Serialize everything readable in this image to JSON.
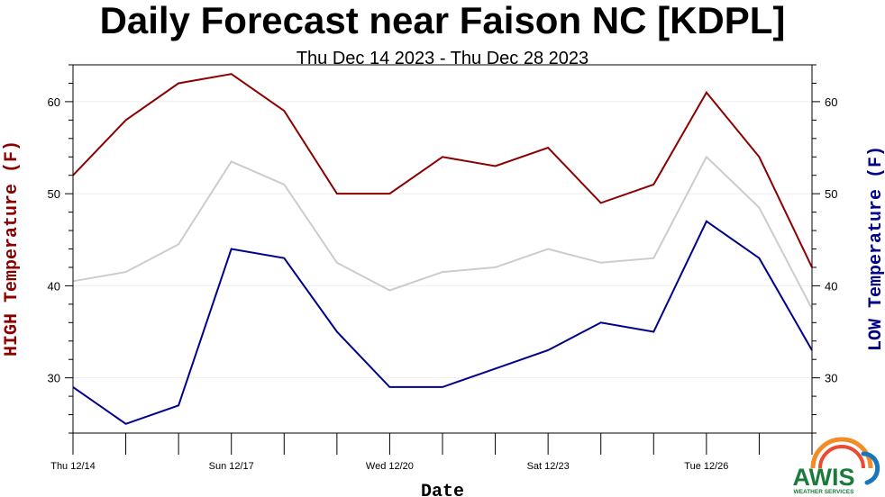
{
  "chart_data": {
    "type": "line",
    "title": "Daily Forecast near Faison NC [KDPL]",
    "subtitle": "Thu Dec 14 2023 - Thu Dec 28 2023",
    "xlabel": "Date",
    "ylabel_left": "HIGH Temperature (F)",
    "ylabel_right": "LOW Temperature (F)",
    "ylim": [
      24,
      64
    ],
    "yticks": [
      30,
      40,
      50,
      60
    ],
    "x": [
      "12/14",
      "12/15",
      "12/16",
      "12/17",
      "12/18",
      "12/19",
      "12/20",
      "12/21",
      "12/22",
      "12/23",
      "12/24",
      "12/25",
      "12/26",
      "12/27",
      "12/28"
    ],
    "xtick_labels": [
      {
        "index": 0,
        "label": "Thu 12/14"
      },
      {
        "index": 3,
        "label": "Sun 12/17"
      },
      {
        "index": 6,
        "label": "Wed 12/20"
      },
      {
        "index": 9,
        "label": "Sat 12/23"
      },
      {
        "index": 12,
        "label": "Tue 12/26"
      }
    ],
    "series": [
      {
        "key": "high",
        "color": "#8b0000",
        "values": [
          52,
          58,
          62,
          63,
          59,
          50,
          50,
          54,
          53,
          55,
          49,
          51,
          61,
          54,
          42
        ]
      },
      {
        "key": "mean",
        "color": "#cccccc",
        "values": [
          40.5,
          41.5,
          44.5,
          53.5,
          51,
          42.5,
          39.5,
          41.5,
          42,
          44,
          42.5,
          43,
          54,
          48.5,
          37.5
        ]
      },
      {
        "key": "low",
        "color": "#00008b",
        "values": [
          29,
          25,
          27,
          44,
          43,
          35,
          29,
          29,
          31,
          33,
          36,
          35,
          47,
          43,
          33
        ]
      }
    ],
    "grid": true
  },
  "logo": {
    "name": "AWIS",
    "tagline": "WEATHER SERVICES"
  },
  "colors": {
    "high_axis": "#8b0000",
    "low_axis": "#00008b"
  }
}
